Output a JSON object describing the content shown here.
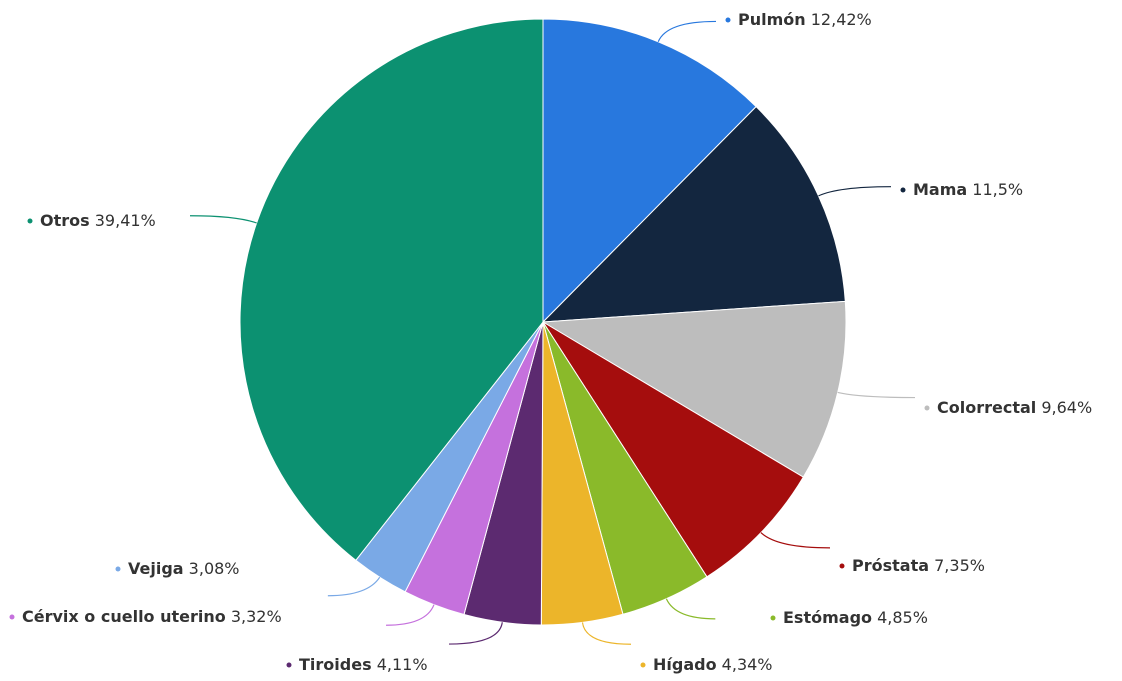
{
  "chart_data": {
    "type": "pie",
    "categories": [
      "Pulmón",
      "Mama",
      "Colorrectal",
      "Próstata",
      "Estómago",
      "Hígado",
      "Tiroides",
      "Cérvix o cuello uterino",
      "Vejiga",
      "Otros"
    ],
    "values": [
      12.42,
      11.5,
      9.64,
      7.35,
      4.85,
      4.34,
      4.11,
      3.32,
      3.08,
      39.41
    ],
    "value_labels": [
      "12,42%",
      "11,5%",
      "9,64%",
      "7,35%",
      "4,85%",
      "4,34%",
      "4,11%",
      "3,32%",
      "3,08%",
      "39,41%"
    ],
    "colors": [
      "#2878de",
      "#13263f",
      "#bdbdbd",
      "#a50d0d",
      "#8aba2a",
      "#ecb52a",
      "#5c2a70",
      "#c571dd",
      "#7aa9e6",
      "#0c9171"
    ]
  }
}
